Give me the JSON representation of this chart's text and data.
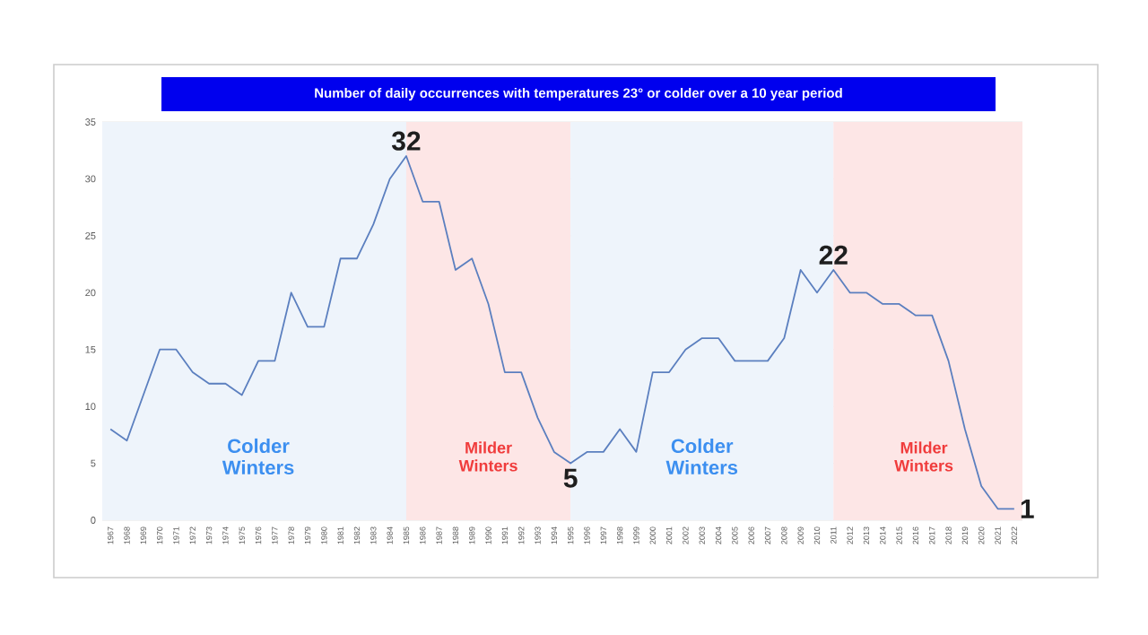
{
  "chart_data": {
    "type": "line",
    "title": "Number of daily occurrences with temperatures 23° or colder over a 10 year period",
    "categories": [
      "1967",
      "1968",
      "1969",
      "1970",
      "1971",
      "1972",
      "1973",
      "1974",
      "1975",
      "1976",
      "1977",
      "1978",
      "1979",
      "1980",
      "1981",
      "1982",
      "1983",
      "1984",
      "1985",
      "1986",
      "1987",
      "1988",
      "1989",
      "1990",
      "1991",
      "1992",
      "1993",
      "1994",
      "1995",
      "1996",
      "1997",
      "1998",
      "1999",
      "2000",
      "2001",
      "2002",
      "2003",
      "2004",
      "2005",
      "2006",
      "2007",
      "2008",
      "2009",
      "2010",
      "2011",
      "2012",
      "2013",
      "2014",
      "2015",
      "2016",
      "2017",
      "2018",
      "2019",
      "2020",
      "2021",
      "2022"
    ],
    "series": [
      {
        "color": "#5b7fbf",
        "values": [
          8,
          7,
          11,
          15,
          15,
          13,
          12,
          12,
          11,
          14,
          14,
          20,
          17,
          17,
          23,
          23,
          26,
          30,
          32,
          28,
          28,
          22,
          23,
          19,
          13,
          13,
          9,
          6,
          5,
          6,
          6,
          8,
          6,
          13,
          13,
          15,
          16,
          16,
          14,
          14,
          14,
          16,
          22,
          20,
          22,
          20,
          20,
          19,
          19,
          18,
          18,
          14,
          8,
          3,
          1,
          1
        ]
      }
    ],
    "ylim": [
      0,
      35
    ],
    "yticks": [
      0,
      5,
      10,
      15,
      20,
      25,
      30,
      35
    ],
    "grid": "y",
    "marker": "none",
    "line_style": "solid",
    "bands": [
      {
        "axis": "x",
        "from": "1967",
        "to": "1985",
        "label": "Colder Winters",
        "color": "#eef4fb"
      },
      {
        "axis": "x",
        "from": "1985",
        "to": "1995",
        "label": "Milder Winters",
        "color": "#fde6e6"
      },
      {
        "axis": "x",
        "from": "1995",
        "to": "2011",
        "label": "Colder Winters",
        "color": "#eef4fb"
      },
      {
        "axis": "x",
        "from": "2011",
        "to": "2022",
        "label": "Milder Winters",
        "color": "#fde6e6"
      }
    ],
    "annotations": [
      {
        "text": "32",
        "x": "1985",
        "y": 32
      },
      {
        "text": "5",
        "x": "1995",
        "y": 5
      },
      {
        "text": "22",
        "x": "2011",
        "y": 22
      },
      {
        "text": "1",
        "x": "2022",
        "y": 1
      }
    ]
  }
}
